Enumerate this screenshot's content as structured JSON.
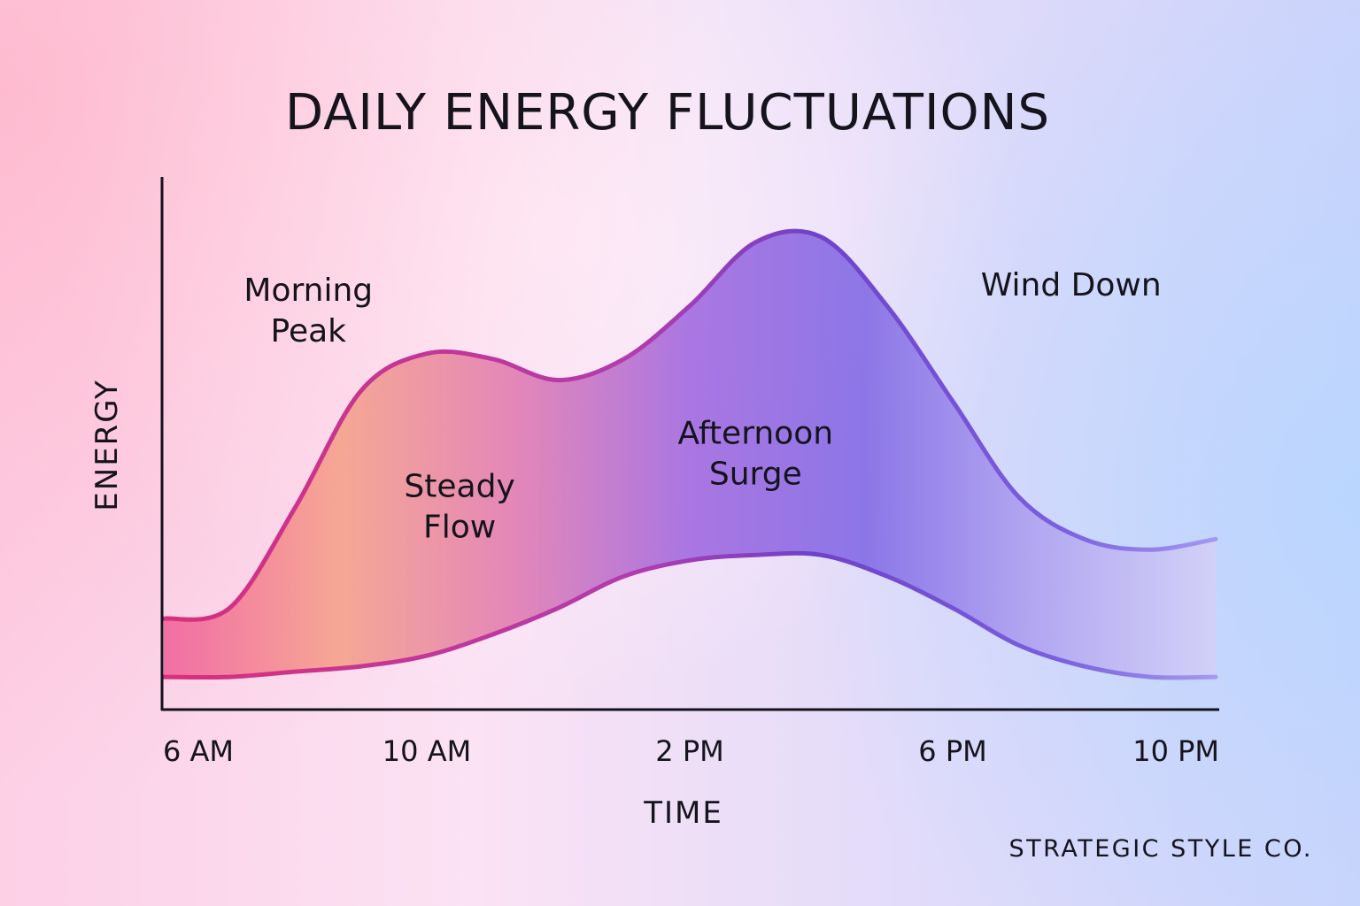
{
  "chart_data": {
    "type": "area",
    "title": "DAILY ENERGY FLUCTUATIONS",
    "xlabel": "TIME",
    "ylabel": "ENERGY",
    "x_ticks": [
      "6 AM",
      "10 AM",
      "2 PM",
      "6 PM",
      "10 PM"
    ],
    "x_range": [
      6,
      22
    ],
    "y_range": [
      0,
      10
    ],
    "grid": false,
    "legend": "none",
    "series": [
      {
        "role": "upper",
        "color": "#d8307c",
        "points": [
          [
            6,
            1.7
          ],
          [
            7,
            1.9
          ],
          [
            8,
            3.8
          ],
          [
            9,
            6.0
          ],
          [
            10,
            6.7
          ],
          [
            11,
            6.6
          ],
          [
            12,
            6.2
          ],
          [
            13,
            6.6
          ],
          [
            14,
            7.6
          ],
          [
            15,
            8.8
          ],
          [
            16,
            8.9
          ],
          [
            17,
            7.6
          ],
          [
            18,
            5.8
          ],
          [
            19,
            4.0
          ],
          [
            20,
            3.2
          ],
          [
            21,
            3.0
          ],
          [
            22,
            3.2
          ]
        ]
      },
      {
        "role": "lower",
        "color": "#6e43c9",
        "points": [
          [
            6,
            0.6
          ],
          [
            7,
            0.6
          ],
          [
            8,
            0.7
          ],
          [
            9,
            0.8
          ],
          [
            10,
            1.0
          ],
          [
            11,
            1.4
          ],
          [
            12,
            1.9
          ],
          [
            13,
            2.5
          ],
          [
            14,
            2.8
          ],
          [
            15,
            2.9
          ],
          [
            16,
            2.9
          ],
          [
            17,
            2.5
          ],
          [
            18,
            1.9
          ],
          [
            19,
            1.2
          ],
          [
            20,
            0.8
          ],
          [
            21,
            0.6
          ],
          [
            22,
            0.6
          ]
        ]
      }
    ],
    "band_colors": [
      "#f0609c",
      "#f5a088",
      "#e07ab0",
      "#9f67df",
      "#8068e4",
      "#b0a2f0",
      "#d4d0f7"
    ],
    "annotations": [
      {
        "id": "morning-peak",
        "lines": [
          "Morning",
          "Peak"
        ],
        "x": 8.2,
        "y": 7.7
      },
      {
        "id": "steady-flow",
        "lines": [
          "Steady",
          "Flow"
        ],
        "x": 10.5,
        "y": 4.0
      },
      {
        "id": "afternoon-surge",
        "lines": [
          "Afternoon",
          "Surge"
        ],
        "x": 15.0,
        "y": 5.0
      },
      {
        "id": "wind-down",
        "lines": [
          "Wind Down"
        ],
        "x": 19.8,
        "y": 7.8
      }
    ]
  },
  "footer": {
    "brand": "STRATEGIC STYLE CO."
  }
}
